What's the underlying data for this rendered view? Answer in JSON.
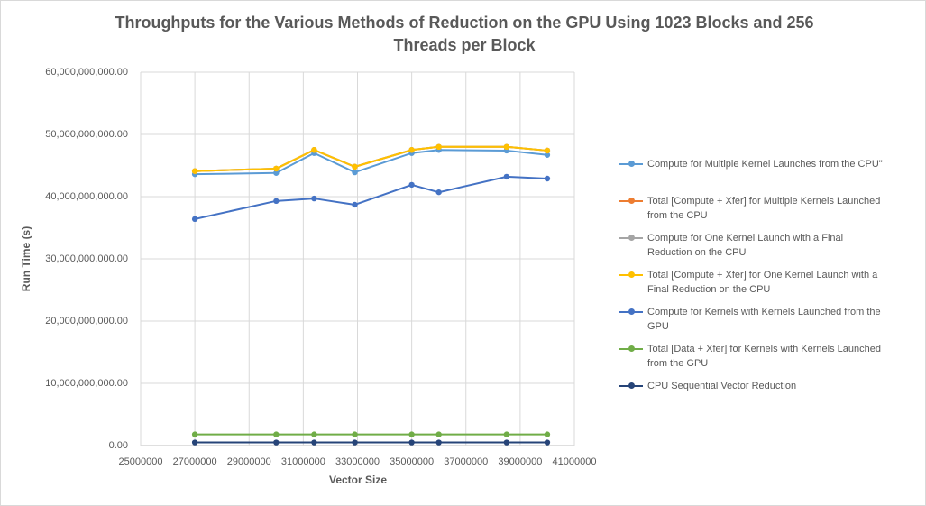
{
  "chart_data": {
    "type": "line",
    "title": "Throughputs for the Various Methods of Reduction on the GPU Using 1023 Blocks and 256 Threads per Block",
    "x_label": "Vector Size",
    "y_label": "Run Time (s)",
    "x": [
      27000000,
      30000000,
      31400000,
      32900000,
      35000000,
      36000000,
      38500000,
      40000000
    ],
    "xlim": [
      25000000,
      41000000
    ],
    "xticks": [
      25000000,
      27000000,
      29000000,
      31000000,
      33000000,
      35000000,
      37000000,
      39000000,
      41000000
    ],
    "ylim": [
      0,
      60000000000
    ],
    "yticks": [
      {
        "value": 0,
        "label": "0.00"
      },
      {
        "value": 10000000000,
        "label": "10,000,000,000.00"
      },
      {
        "value": 20000000000,
        "label": "20,000,000,000.00"
      },
      {
        "value": 30000000000,
        "label": "30,000,000,000.00"
      },
      {
        "value": 40000000000,
        "label": "40,000,000,000.00"
      },
      {
        "value": 50000000000,
        "label": "50,000,000,000.00"
      },
      {
        "value": 60000000000,
        "label": "60,000,000,000.00"
      }
    ],
    "grid": true,
    "legend": "right",
    "series": [
      {
        "name": "Compute for Multiple Kernel Launches from the CPU\"",
        "color": "#5b9bd5",
        "values": [
          43600000000,
          43800000000,
          47000000000,
          43900000000,
          47000000000,
          47500000000,
          47400000000,
          46700000000
        ]
      },
      {
        "name": "Total [Compute + Xfer] for Multiple Kernels Launched from the CPU",
        "color": "#ed7d31",
        "values": [
          44100000000,
          44500000000,
          47500000000,
          44800000000,
          47500000000,
          48000000000,
          48000000000,
          47400000000
        ]
      },
      {
        "name": "Compute for One Kernel Launch with a Final Reduction on the CPU",
        "color": "#a5a5a5",
        "values": [
          44100000000,
          44500000000,
          47500000000,
          44800000000,
          47500000000,
          48000000000,
          48000000000,
          47400000000
        ]
      },
      {
        "name": "Total [Compute + Xfer] for One Kernel Launch with a Final Reduction on the CPU",
        "color": "#ffc000",
        "values": [
          44100000000,
          44500000000,
          47500000000,
          44800000000,
          47500000000,
          48000000000,
          48000000000,
          47400000000
        ]
      },
      {
        "name": "Compute for Kernels with Kernels Launched from the GPU",
        "color": "#4472c4",
        "values": [
          36400000000,
          39300000000,
          39700000000,
          38700000000,
          41900000000,
          40700000000,
          43200000000,
          42900000000
        ]
      },
      {
        "name": "Total [Data + Xfer] for Kernels with Kernels Launched from the GPU",
        "color": "#70ad47",
        "values": [
          1800000000,
          1800000000,
          1800000000,
          1800000000,
          1800000000,
          1800000000,
          1800000000,
          1800000000
        ]
      },
      {
        "name": "CPU Sequential Vector Reduction",
        "color": "#264478",
        "values": [
          500000000,
          500000000,
          500000000,
          500000000,
          500000000,
          500000000,
          500000000,
          500000000
        ]
      }
    ]
  }
}
